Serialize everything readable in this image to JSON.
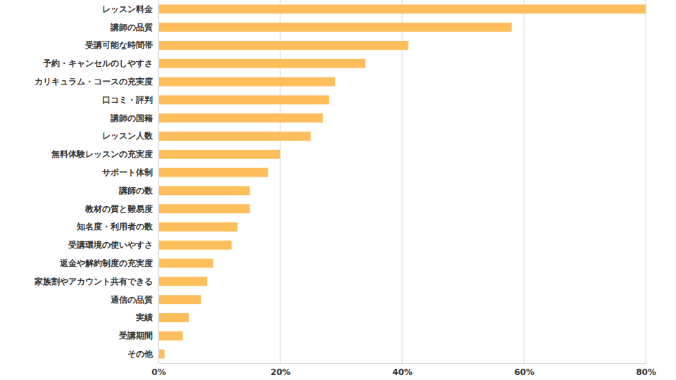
{
  "chart_data": {
    "type": "bar",
    "orientation": "horizontal",
    "categories": [
      "レッスン料金",
      "講師の品質",
      "受講可能な時間帯",
      "予約・キャンセルのしやすさ",
      "カリキュラム・コースの充実度",
      "口コミ・評判",
      "講師の国籍",
      "レッスン人数",
      "無料体験レッスンの充実度",
      "サポート体制",
      "講師の数",
      "教材の質と難易度",
      "知名度・利用者の数",
      "受講環境の使いやすさ",
      "返金や解約制度の充実度",
      "家族割やアカウント共有できる",
      "通信の品質",
      "実績",
      "受講期間",
      "その他"
    ],
    "values": [
      80,
      58,
      41,
      34,
      29,
      28,
      27,
      25,
      20,
      18,
      15,
      15,
      13,
      12,
      9,
      8,
      7,
      5,
      4,
      1
    ],
    "color": "#ffbe5c",
    "xlim": [
      0,
      80
    ],
    "xticks": [
      {
        "value": 0,
        "label": "0%"
      },
      {
        "value": 20,
        "label": "20%"
      },
      {
        "value": 40,
        "label": "40%"
      },
      {
        "value": 60,
        "label": "60%"
      },
      {
        "value": 80,
        "label": "80%"
      }
    ],
    "grid": true
  }
}
